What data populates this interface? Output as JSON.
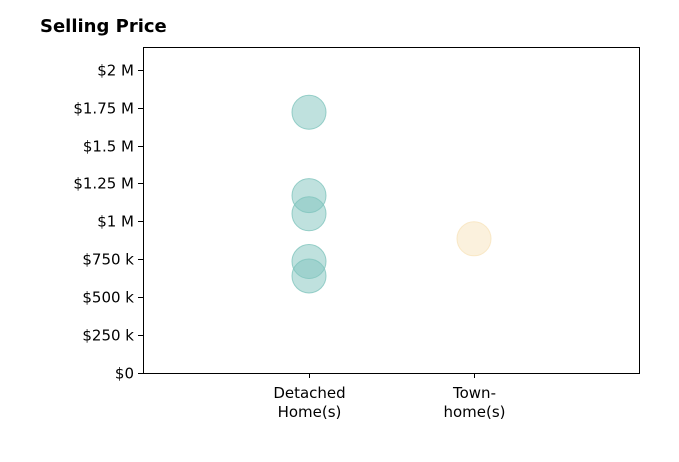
{
  "chart_data": {
    "type": "scatter",
    "title": "Selling Price",
    "xlabel": "",
    "ylabel": "",
    "categories": [
      [
        "Detached",
        "Home(s)"
      ],
      [
        "Town-",
        "home(s)"
      ]
    ],
    "ylim": [
      0,
      2150000
    ],
    "yticks": [
      {
        "value": 0,
        "label": "$0"
      },
      {
        "value": 250000,
        "label": "$250 k"
      },
      {
        "value": 500000,
        "label": "$500 k"
      },
      {
        "value": 750000,
        "label": "$750 k"
      },
      {
        "value": 1000000,
        "label": "$1 M"
      },
      {
        "value": 1250000,
        "label": "$1.25 M"
      },
      {
        "value": 1500000,
        "label": "$1.5 M"
      },
      {
        "value": 1750000,
        "label": "$1.75 M"
      },
      {
        "value": 2000000,
        "label": "$2 M"
      }
    ],
    "grid": false,
    "legend": "none",
    "series": [
      {
        "category_index": 0,
        "color": "#7fc4bd",
        "values": [
          1720000,
          1170000,
          1050000,
          735000,
          640000
        ]
      },
      {
        "category_index": 1,
        "color": "#f7e3bc",
        "values": [
          885000
        ]
      }
    ]
  }
}
